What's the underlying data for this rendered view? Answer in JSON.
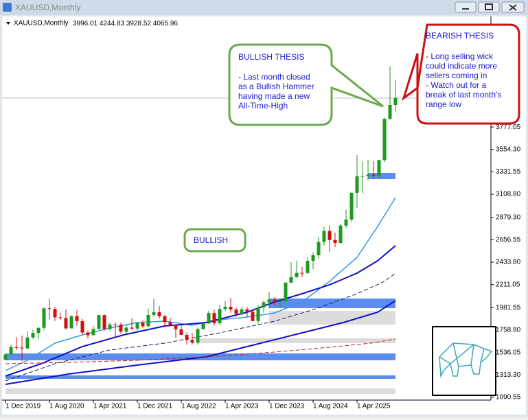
{
  "window": {
    "title": "XAUUSD,Monthly"
  },
  "chart": {
    "symbol": "XAUUSD,Monthly",
    "ylim": [
      1063,
      4876
    ],
    "yticks": [
      1090.55,
      {
        "value": 1313.3,
        "label": "1313.30"
      },
      1536.05,
      {
        "value": 1758.8,
        "label": "1758.80"
      },
      1981.55,
      2211.05,
      {
        "value": 2433.8,
        "label": "2433.80"
      },
      2656.55,
      {
        "value": 2879.3,
        "label": "2879.30"
      },
      {
        "value": 3108.8,
        "label": "3108.80"
      },
      3331.55,
      {
        "value": 3554.3,
        "label": "3554.30"
      },
      3777.05
    ],
    "xlabels": [
      "1 Dec 2019",
      "1 Aug 2020",
      "1 Apr 2021",
      "1 Dec 2021",
      "1 Aug 2022",
      "1 Apr 2023",
      "1 Dec 2023",
      "1 Aug 2024",
      "1 Apr 2025"
    ],
    "candles": [
      [
        1463,
        1525,
        1459,
        1517
      ],
      [
        1517,
        1611,
        1517,
        1589
      ],
      [
        1589,
        1689,
        1563,
        1585
      ],
      [
        1585,
        1704,
        1451,
        1577
      ],
      [
        1577,
        1747,
        1567,
        1686
      ],
      [
        1686,
        1765,
        1670,
        1730
      ],
      [
        1730,
        1789,
        1671,
        1781
      ],
      [
        1781,
        1984,
        1757,
        1975
      ],
      [
        1975,
        2075,
        1863,
        1968
      ],
      [
        1968,
        1992,
        1848,
        1886
      ],
      [
        1886,
        1933,
        1860,
        1879
      ],
      [
        1879,
        1965,
        1764,
        1776
      ],
      [
        1776,
        1906,
        1775,
        1898
      ],
      [
        1898,
        1959,
        1802,
        1847
      ],
      [
        1847,
        1871,
        1717,
        1734
      ],
      [
        1734,
        1755,
        1677,
        1708
      ],
      [
        1708,
        1798,
        1706,
        1769
      ],
      [
        1769,
        1913,
        1768,
        1907
      ],
      [
        1907,
        1916,
        1750,
        1770
      ],
      [
        1770,
        1832,
        1750,
        1814
      ],
      [
        1814,
        1834,
        1688,
        1813
      ],
      [
        1813,
        1834,
        1722,
        1743
      ],
      [
        1743,
        1814,
        1721,
        1783
      ],
      [
        1783,
        1877,
        1759,
        1774
      ],
      [
        1774,
        1831,
        1753,
        1829
      ],
      [
        1829,
        1853,
        1780,
        1797
      ],
      [
        1797,
        1974,
        1785,
        1909
      ],
      [
        1909,
        2070,
        1890,
        1937
      ],
      [
        1937,
        1998,
        1872,
        1897
      ],
      [
        1897,
        1910,
        1787,
        1837
      ],
      [
        1837,
        1879,
        1805,
        1807
      ],
      [
        1807,
        1814,
        1681,
        1766
      ],
      [
        1766,
        1808,
        1709,
        1711
      ],
      [
        1711,
        1735,
        1615,
        1661
      ],
      [
        1661,
        1729,
        1617,
        1633
      ],
      [
        1633,
        1786,
        1617,
        1768
      ],
      [
        1768,
        1833,
        1765,
        1824
      ],
      [
        1824,
        1949,
        1823,
        1928
      ],
      [
        1928,
        1960,
        1804,
        1827
      ],
      [
        1827,
        2009,
        1809,
        1969
      ],
      [
        1969,
        2048,
        1949,
        1990
      ],
      [
        1990,
        2079,
        1932,
        1963
      ],
      [
        1963,
        1983,
        1893,
        1919
      ],
      [
        1919,
        1987,
        1903,
        1965
      ],
      [
        1965,
        1987,
        1885,
        1940
      ],
      [
        1940,
        1953,
        1846,
        1849
      ],
      [
        1849,
        2009,
        1810,
        1983
      ],
      [
        1983,
        2052,
        1931,
        2036
      ],
      [
        2036,
        2135,
        1973,
        2063
      ],
      [
        2063,
        2089,
        2002,
        2039
      ],
      [
        2039,
        2065,
        1984,
        2044
      ],
      [
        2044,
        2236,
        2039,
        2230
      ],
      [
        2230,
        2432,
        2228,
        2286
      ],
      [
        2286,
        2450,
        2277,
        2327
      ],
      [
        2327,
        2388,
        2286,
        2326
      ],
      [
        2326,
        2484,
        2319,
        2447
      ],
      [
        2447,
        2531,
        2364,
        2503
      ],
      [
        2503,
        2685,
        2472,
        2635
      ],
      [
        2635,
        2790,
        2603,
        2744
      ],
      [
        2744,
        2801,
        2536,
        2654
      ],
      [
        2654,
        2726,
        2583,
        2625
      ],
      [
        2625,
        2817,
        2614,
        2798
      ],
      [
        2798,
        2956,
        2772,
        2858
      ],
      [
        2858,
        3128,
        2833,
        3124
      ],
      [
        3124,
        3500,
        2970,
        3288
      ],
      [
        3288,
        3435,
        3121,
        3289
      ],
      [
        3289,
        3452,
        3247,
        3303
      ],
      [
        3303,
        3439,
        3268,
        3290
      ],
      [
        3290,
        3453,
        3268,
        3448
      ],
      [
        3448,
        3870,
        3430,
        3858
      ],
      [
        3858,
        4381,
        3850,
        3996.01
      ],
      [
        3996.01,
        4244.83,
        3928.52,
        4065.96
      ]
    ],
    "annotations": {
      "bullish_thesis": {
        "title": "BULLISH THESIS",
        "lines": [
          "- Last month closed",
          "as a Bullish Hammer",
          "having made a new",
          "All-Time-High"
        ]
      },
      "bearish_thesis": {
        "title": "BEARISH THESIS",
        "lines": [
          "- Long selling wick",
          "could indicate more",
          "sellers coming in",
          "- Watch out for a",
          "break of last month's",
          "range low"
        ]
      },
      "bias": "BULLISH"
    }
  }
}
